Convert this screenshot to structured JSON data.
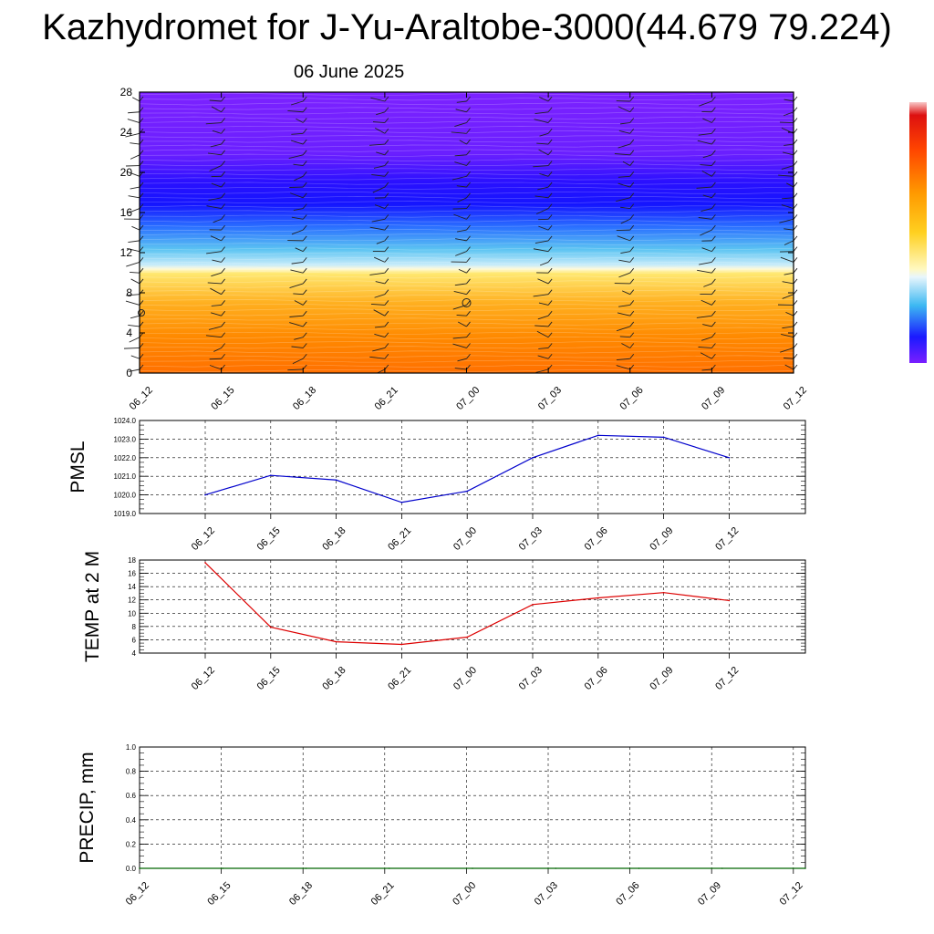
{
  "title": "Kazhydromet for J-Yu-Araltobe-3000(44.679 79.224)",
  "subtitle": "06 June 2025",
  "colors": {
    "purple": "#7a1eff",
    "blue": "#1a1aff",
    "cyan": "#3cb8f2",
    "yellow": "#ffee55",
    "orange": "#ff8800",
    "pmsl_line": "#0000cc",
    "temp_line": "#dd0000",
    "precip_line": "#006600"
  },
  "chart_data": [
    {
      "type": "heatmap",
      "title": "",
      "x_ticks": [
        "06_12",
        "06_15",
        "06_18",
        "06_21",
        "07_00",
        "07_03",
        "07_06",
        "07_09",
        "07_12"
      ],
      "y_ticks": [
        0,
        4,
        8,
        12,
        16,
        20,
        24,
        28
      ],
      "ylim": [
        0,
        28
      ],
      "color_bands": [
        {
          "from": 0,
          "to": 4,
          "color": "orange"
        },
        {
          "from": 4,
          "to": 10.5,
          "color": "yellow-orange"
        },
        {
          "from": 10.5,
          "to": 15,
          "color": "cyan"
        },
        {
          "from": 15,
          "to": 21,
          "color": "blue"
        },
        {
          "from": 21,
          "to": 28,
          "color": "purple"
        }
      ],
      "wind_barbs": true,
      "colorbar": true
    },
    {
      "type": "line",
      "ylabel": "PMSL",
      "ylim": [
        1019.0,
        1024.0
      ],
      "y_ticks": [
        "1019.0",
        "1020.0",
        "1021.0",
        "1022.0",
        "1023.0",
        "1024.0"
      ],
      "x_ticks": [
        "06_12",
        "06_15",
        "06_18",
        "06_21",
        "07_00",
        "07_03",
        "07_06",
        "07_09",
        "07_12"
      ],
      "series": [
        {
          "values": [
            1020.0,
            1021.05,
            1020.8,
            1019.6,
            1020.2,
            1022.0,
            1023.2,
            1023.1,
            1022.0
          ]
        }
      ],
      "grid": true
    },
    {
      "type": "line",
      "ylabel": "TEMP at 2 M",
      "ylim": [
        4,
        18
      ],
      "y_ticks": [
        4,
        6,
        8,
        10,
        12,
        14,
        16,
        18
      ],
      "x_ticks": [
        "06_12",
        "06_15",
        "06_18",
        "06_21",
        "07_00",
        "07_03",
        "07_06",
        "07_09",
        "07_12"
      ],
      "series": [
        {
          "values": [
            17.6,
            7.9,
            5.7,
            5.3,
            6.4,
            11.3,
            12.3,
            13.1,
            11.9
          ]
        }
      ],
      "grid": true
    },
    {
      "type": "line",
      "ylabel": "PRECIP, mm",
      "ylim": [
        0.0,
        1.0
      ],
      "y_ticks": [
        "0.0",
        "0.2",
        "0.4",
        "0.6",
        "0.8",
        "1.0"
      ],
      "x_ticks": [
        "06_12",
        "06_15",
        "06_18",
        "06_21",
        "07_00",
        "07_03",
        "07_06",
        "07_09",
        "07_12"
      ],
      "series": [
        {
          "values": [
            0,
            0,
            0,
            0,
            0,
            0,
            0,
            0,
            0
          ]
        }
      ],
      "grid": true
    }
  ]
}
